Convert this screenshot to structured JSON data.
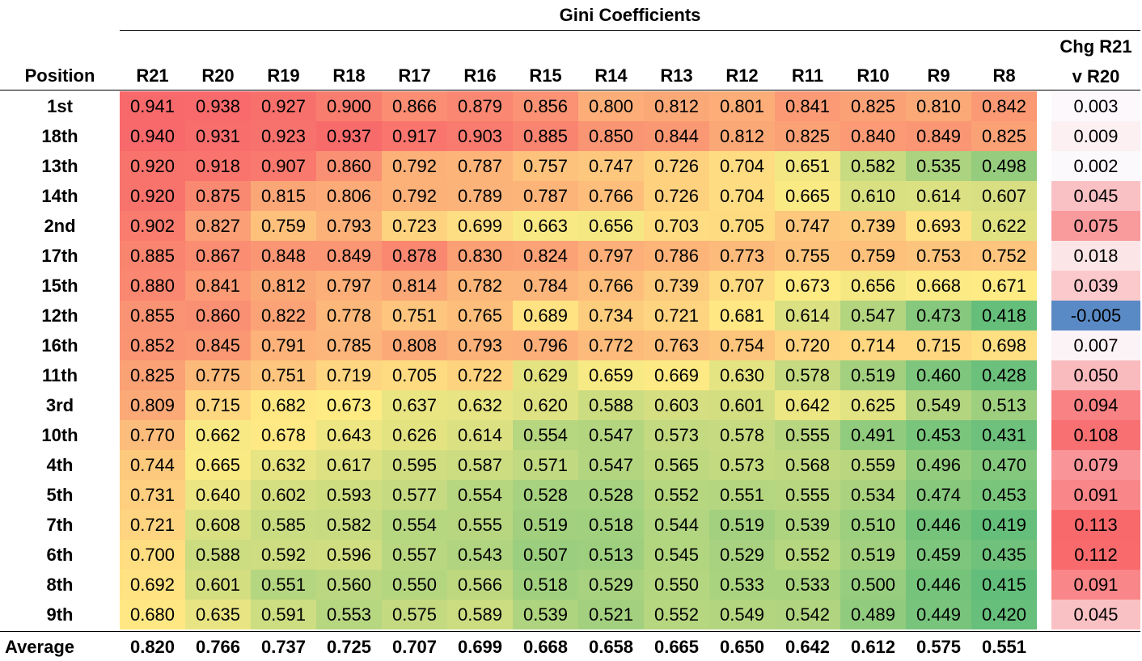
{
  "chart_data": {
    "type": "table",
    "title": "Gini Coefficients",
    "row_header": "Position",
    "columns": [
      "R21",
      "R20",
      "R19",
      "R18",
      "R17",
      "R16",
      "R15",
      "R14",
      "R13",
      "R12",
      "R11",
      "R10",
      "R9",
      "R8"
    ],
    "change_header": [
      "Chg R21",
      "v R20"
    ],
    "rows": [
      {
        "position": "1st",
        "values": [
          "0.941",
          "0.938",
          "0.927",
          "0.900",
          "0.866",
          "0.879",
          "0.856",
          "0.800",
          "0.812",
          "0.801",
          "0.841",
          "0.825",
          "0.810",
          "0.842"
        ],
        "change": "0.003"
      },
      {
        "position": "18th",
        "values": [
          "0.940",
          "0.931",
          "0.923",
          "0.937",
          "0.917",
          "0.903",
          "0.885",
          "0.850",
          "0.844",
          "0.812",
          "0.825",
          "0.840",
          "0.849",
          "0.825"
        ],
        "change": "0.009"
      },
      {
        "position": "13th",
        "values": [
          "0.920",
          "0.918",
          "0.907",
          "0.860",
          "0.792",
          "0.787",
          "0.757",
          "0.747",
          "0.726",
          "0.704",
          "0.651",
          "0.582",
          "0.535",
          "0.498"
        ],
        "change": "0.002"
      },
      {
        "position": "14th",
        "values": [
          "0.920",
          "0.875",
          "0.815",
          "0.806",
          "0.792",
          "0.789",
          "0.787",
          "0.766",
          "0.726",
          "0.704",
          "0.665",
          "0.610",
          "0.614",
          "0.607"
        ],
        "change": "0.045"
      },
      {
        "position": "2nd",
        "values": [
          "0.902",
          "0.827",
          "0.759",
          "0.793",
          "0.723",
          "0.699",
          "0.663",
          "0.656",
          "0.703",
          "0.705",
          "0.747",
          "0.739",
          "0.693",
          "0.622"
        ],
        "change": "0.075"
      },
      {
        "position": "17th",
        "values": [
          "0.885",
          "0.867",
          "0.848",
          "0.849",
          "0.878",
          "0.830",
          "0.824",
          "0.797",
          "0.786",
          "0.773",
          "0.755",
          "0.759",
          "0.753",
          "0.752"
        ],
        "change": "0.018"
      },
      {
        "position": "15th",
        "values": [
          "0.880",
          "0.841",
          "0.812",
          "0.797",
          "0.814",
          "0.782",
          "0.784",
          "0.766",
          "0.739",
          "0.707",
          "0.673",
          "0.656",
          "0.668",
          "0.671"
        ],
        "change": "0.039"
      },
      {
        "position": "12th",
        "values": [
          "0.855",
          "0.860",
          "0.822",
          "0.778",
          "0.751",
          "0.765",
          "0.689",
          "0.734",
          "0.721",
          "0.681",
          "0.614",
          "0.547",
          "0.473",
          "0.418"
        ],
        "change": "-0.005"
      },
      {
        "position": "16th",
        "values": [
          "0.852",
          "0.845",
          "0.791",
          "0.785",
          "0.808",
          "0.793",
          "0.796",
          "0.772",
          "0.763",
          "0.754",
          "0.720",
          "0.714",
          "0.715",
          "0.698"
        ],
        "change": "0.007"
      },
      {
        "position": "11th",
        "values": [
          "0.825",
          "0.775",
          "0.751",
          "0.719",
          "0.705",
          "0.722",
          "0.629",
          "0.659",
          "0.669",
          "0.630",
          "0.578",
          "0.519",
          "0.460",
          "0.428"
        ],
        "change": "0.050"
      },
      {
        "position": "3rd",
        "values": [
          "0.809",
          "0.715",
          "0.682",
          "0.673",
          "0.637",
          "0.632",
          "0.620",
          "0.588",
          "0.603",
          "0.601",
          "0.642",
          "0.625",
          "0.549",
          "0.513"
        ],
        "change": "0.094"
      },
      {
        "position": "10th",
        "values": [
          "0.770",
          "0.662",
          "0.678",
          "0.643",
          "0.626",
          "0.614",
          "0.554",
          "0.547",
          "0.573",
          "0.578",
          "0.555",
          "0.491",
          "0.453",
          "0.431"
        ],
        "change": "0.108"
      },
      {
        "position": "4th",
        "values": [
          "0.744",
          "0.665",
          "0.632",
          "0.617",
          "0.595",
          "0.587",
          "0.571",
          "0.547",
          "0.565",
          "0.573",
          "0.568",
          "0.559",
          "0.496",
          "0.470"
        ],
        "change": "0.079"
      },
      {
        "position": "5th",
        "values": [
          "0.731",
          "0.640",
          "0.602",
          "0.593",
          "0.577",
          "0.554",
          "0.528",
          "0.528",
          "0.552",
          "0.551",
          "0.555",
          "0.534",
          "0.474",
          "0.453"
        ],
        "change": "0.091"
      },
      {
        "position": "7th",
        "values": [
          "0.721",
          "0.608",
          "0.585",
          "0.582",
          "0.554",
          "0.555",
          "0.519",
          "0.518",
          "0.544",
          "0.519",
          "0.539",
          "0.510",
          "0.446",
          "0.419"
        ],
        "change": "0.113"
      },
      {
        "position": "6th",
        "values": [
          "0.700",
          "0.588",
          "0.592",
          "0.596",
          "0.557",
          "0.543",
          "0.507",
          "0.513",
          "0.545",
          "0.529",
          "0.552",
          "0.519",
          "0.459",
          "0.435"
        ],
        "change": "0.112"
      },
      {
        "position": "8th",
        "values": [
          "0.692",
          "0.601",
          "0.551",
          "0.560",
          "0.550",
          "0.566",
          "0.518",
          "0.529",
          "0.550",
          "0.533",
          "0.533",
          "0.500",
          "0.446",
          "0.415"
        ],
        "change": "0.091"
      },
      {
        "position": "9th",
        "values": [
          "0.680",
          "0.635",
          "0.591",
          "0.553",
          "0.575",
          "0.589",
          "0.539",
          "0.521",
          "0.552",
          "0.549",
          "0.542",
          "0.489",
          "0.449",
          "0.420"
        ],
        "change": "0.045"
      }
    ],
    "average": {
      "label": "Average",
      "values": [
        "0.820",
        "0.766",
        "0.737",
        "0.725",
        "0.707",
        "0.699",
        "0.668",
        "0.658",
        "0.665",
        "0.650",
        "0.642",
        "0.612",
        "0.575",
        "0.551"
      ]
    },
    "colors": {
      "value_scale_high": "#f8696b",
      "value_scale_mid": "#ffeb84",
      "value_scale_low": "#63be7b",
      "change_positive": "#f8696b",
      "change_zero": "#fcfcff",
      "change_negative": "#5a8ac6"
    }
  }
}
